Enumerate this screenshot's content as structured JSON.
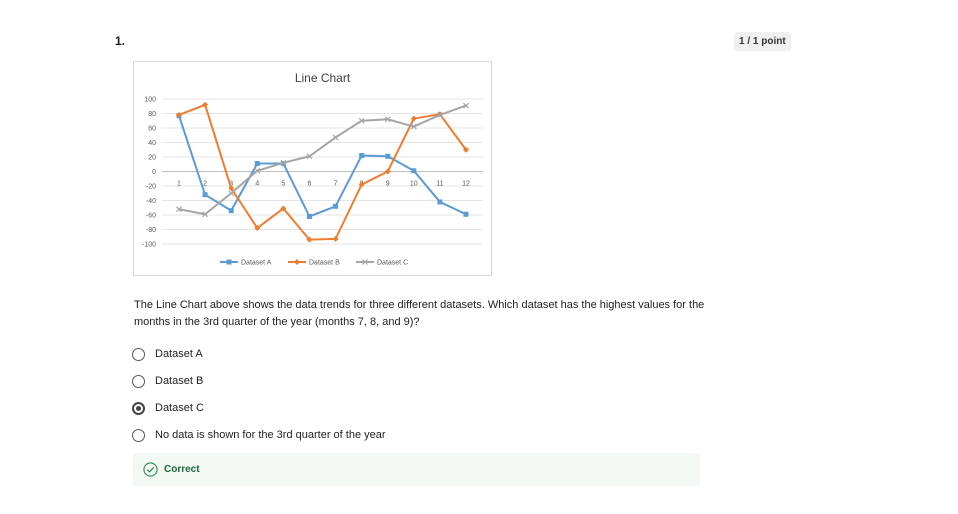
{
  "question": {
    "number": "1.",
    "points": "1 / 1 point",
    "text": "The Line Chart above shows the data trends for three different datasets. Which dataset has the highest values for the months in the 3rd quarter of the year (months 7, 8, and 9)?",
    "options": [
      {
        "label": "Dataset A",
        "selected": false
      },
      {
        "label": "Dataset B",
        "selected": false
      },
      {
        "label": "Dataset C",
        "selected": true
      },
      {
        "label": "No data is shown for the 3rd quarter of the year",
        "selected": false
      }
    ],
    "feedback": "Correct"
  },
  "colors": {
    "dataset_a": "#5b9bd5",
    "dataset_b": "#ed7d31",
    "dataset_c": "#a5a5a5",
    "correct": "#2e8b57"
  },
  "chart_data": {
    "type": "line",
    "title": "Line Chart",
    "x": [
      1,
      2,
      3,
      4,
      5,
      6,
      7,
      8,
      9,
      10,
      11,
      12
    ],
    "y_ticks": [
      100,
      80,
      60,
      40,
      20,
      0,
      -20,
      -40,
      -60,
      -80,
      -100
    ],
    "ylim": [
      -100,
      100
    ],
    "grid": true,
    "legend_position": "bottom",
    "series": [
      {
        "name": "Dataset A",
        "values": [
          77,
          -32,
          -54,
          11,
          11,
          -62,
          -48,
          22,
          21,
          1,
          -42,
          -59
        ]
      },
      {
        "name": "Dataset B",
        "values": [
          78,
          92,
          -23,
          -78,
          -51,
          -94,
          -93,
          -18,
          0,
          73,
          79,
          30
        ]
      },
      {
        "name": "Dataset C",
        "values": [
          -52,
          -59,
          -30,
          1,
          12,
          21,
          47,
          70,
          72,
          62,
          78,
          91
        ]
      }
    ]
  }
}
